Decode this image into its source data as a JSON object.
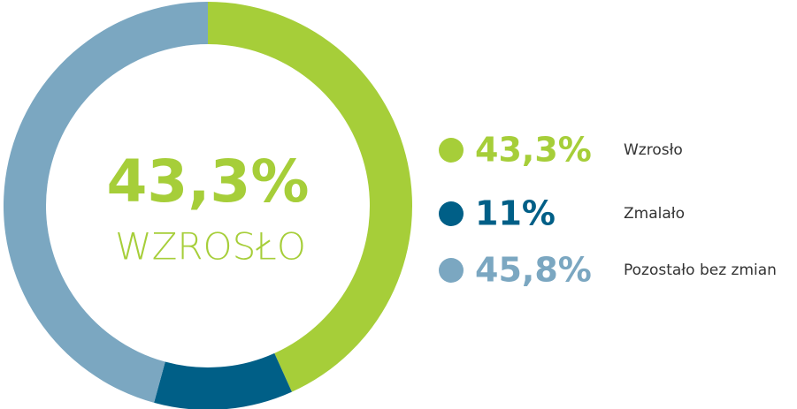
{
  "chart_data": {
    "type": "pie",
    "donut": true,
    "center_value": "43,3%",
    "center_label": "WZROSŁO",
    "categories": [
      "Wzrosło",
      "Zmalało",
      "Pozostało bez zmian"
    ],
    "values": [
      43.3,
      11,
      45.8
    ],
    "value_labels": [
      "43,3%",
      "11%",
      "45,8%"
    ],
    "colors": [
      "#a6ce39",
      "#005f87",
      "#7ba7c1"
    ],
    "legend": "right"
  }
}
